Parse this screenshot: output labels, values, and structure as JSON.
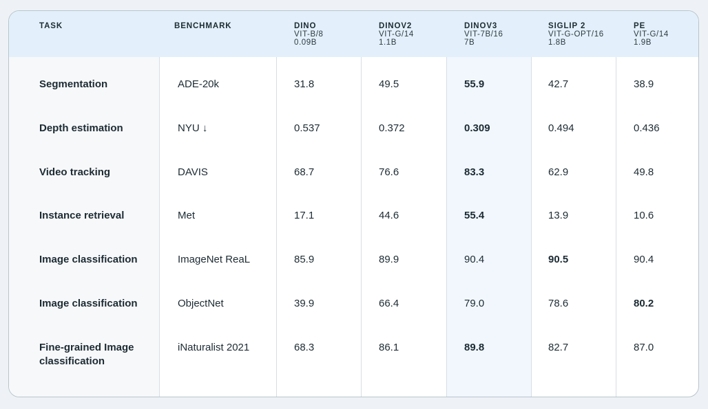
{
  "columns": {
    "task": "TASK",
    "benchmark": "BENCHMARK",
    "models": [
      {
        "name": "DINO",
        "arch": "VIT-B/8",
        "params": "0.09B"
      },
      {
        "name": "DINOV2",
        "arch": "VIT-G/14",
        "params": "1.1B"
      },
      {
        "name": "DINOV3",
        "arch": "VIT-7B/16",
        "params": "7B"
      },
      {
        "name": "SIGLIP 2",
        "arch": "VIT-G-OPT/16",
        "params": "1.8B"
      },
      {
        "name": "PE",
        "arch": "VIT-G/14",
        "params": "1.9B"
      }
    ]
  },
  "rows": [
    {
      "task": "Segmentation",
      "benchmark": "ADE-20k",
      "values": [
        "31.8",
        "49.5",
        "55.9",
        "42.7",
        "38.9"
      ],
      "best": 2
    },
    {
      "task": "Depth estimation",
      "benchmark": "NYU ↓",
      "values": [
        "0.537",
        "0.372",
        "0.309",
        "0.494",
        "0.436"
      ],
      "best": 2
    },
    {
      "task": "Video tracking",
      "benchmark": "DAVIS",
      "values": [
        "68.7",
        "76.6",
        "83.3",
        "62.9",
        "49.8"
      ],
      "best": 2
    },
    {
      "task": "Instance retrieval",
      "benchmark": "Met",
      "values": [
        "17.1",
        "44.6",
        "55.4",
        "13.9",
        "10.6"
      ],
      "best": 2
    },
    {
      "task": "Image classification",
      "benchmark": "ImageNet ReaL",
      "values": [
        "85.9",
        "89.9",
        "90.4",
        "90.5",
        "90.4"
      ],
      "best": 3
    },
    {
      "task": "Image classification",
      "benchmark": "ObjectNet",
      "values": [
        "39.9",
        "66.4",
        "79.0",
        "78.6",
        "80.2"
      ],
      "best": 4
    },
    {
      "task": "Fine-grained Image classification",
      "benchmark": "iNaturalist 2021",
      "values": [
        "68.3",
        "86.1",
        "89.8",
        "82.7",
        "87.0"
      ],
      "best": 2
    }
  ],
  "colors": {
    "header_bg": "#e3f0fb",
    "task_column_bg": "#f7f8fa",
    "highlight_column_bg": "#f1f7fd",
    "border": "#d7dee4"
  }
}
